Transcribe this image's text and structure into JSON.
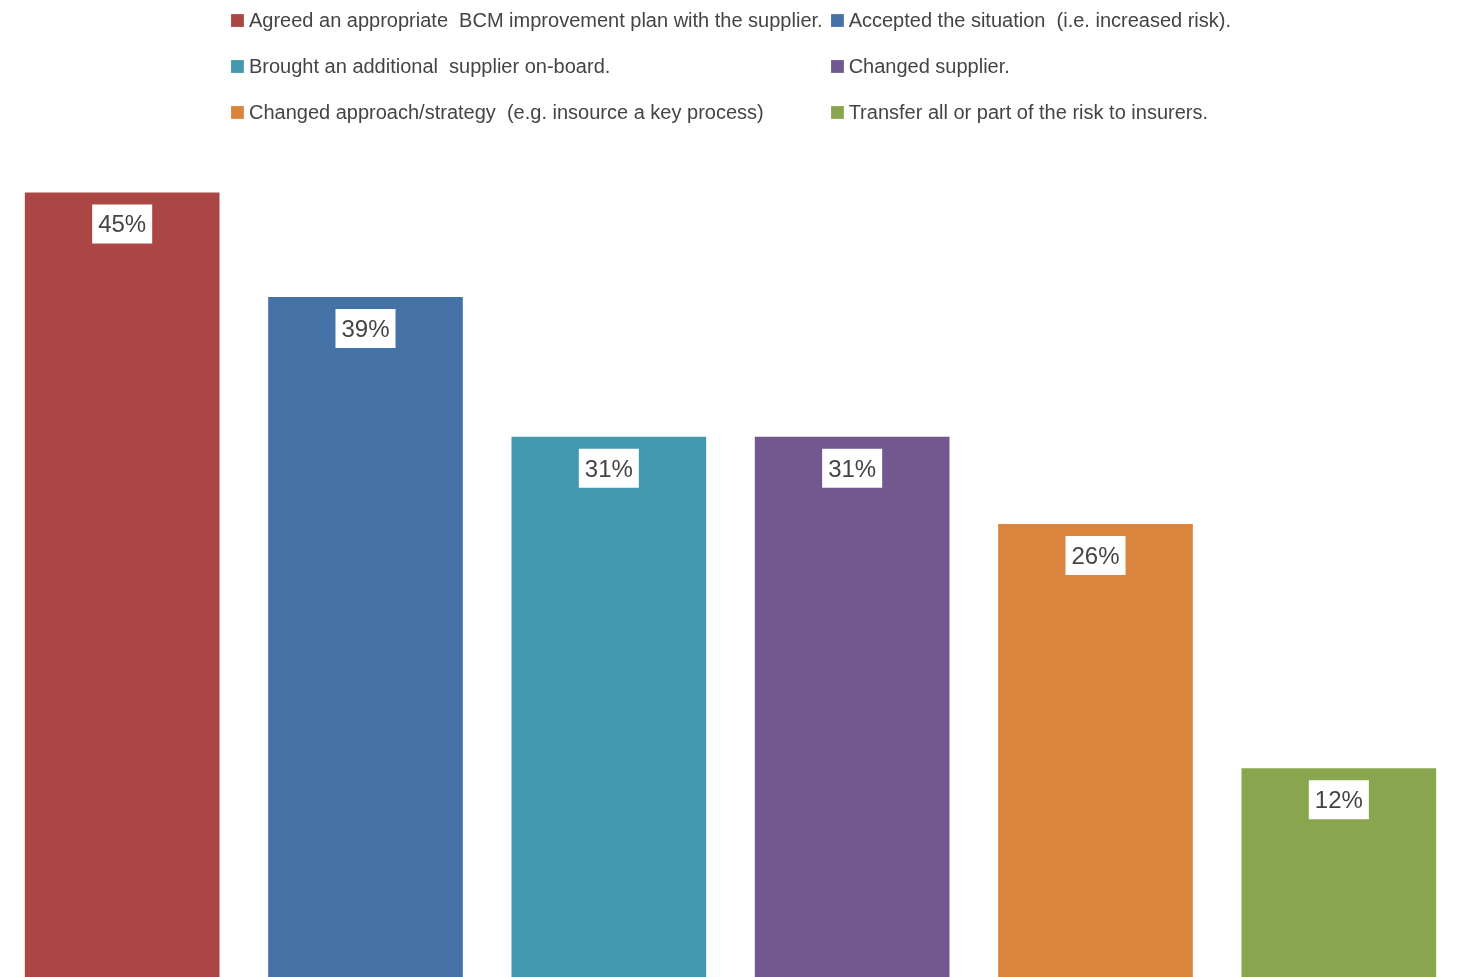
{
  "chart_data": {
    "type": "bar",
    "tick_labels": false,
    "ylim": [
      0,
      56
    ],
    "legend": "top",
    "data_labels": true,
    "categories": [
      null
    ],
    "series": [
      {
        "name": "Agreed an appropriate  BCM improvement plan with the supplier.",
        "color": "#aa4643",
        "values": [
          45
        ],
        "value_labels": [
          "45%"
        ]
      },
      {
        "name": "Accepted the situation  (i.e. increased risk).",
        "color": "#4572a7",
        "values": [
          39
        ],
        "value_labels": [
          "39%"
        ]
      },
      {
        "name": "Brought an additional  supplier on-board.",
        "color": "#4198af",
        "values": [
          31
        ],
        "value_labels": [
          "31%"
        ]
      },
      {
        "name": "Changed supplier.",
        "color": "#71588f",
        "values": [
          31
        ],
        "value_labels": [
          "31%"
        ]
      },
      {
        "name": "Changed approach/strategy  (e.g. insource a key process)",
        "color": "#db843d",
        "values": [
          26
        ],
        "value_labels": [
          "26%"
        ]
      },
      {
        "name": "Transfer all or part of the risk to insurers.",
        "color": "#89a54e",
        "values": [
          12
        ],
        "value_labels": [
          "12%"
        ]
      }
    ]
  }
}
